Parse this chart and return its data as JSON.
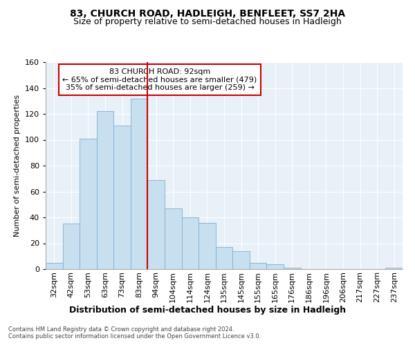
{
  "title": "83, CHURCH ROAD, HADLEIGH, BENFLEET, SS7 2HA",
  "subtitle": "Size of property relative to semi-detached houses in Hadleigh",
  "xlabel": "Distribution of semi-detached houses by size in Hadleigh",
  "ylabel": "Number of semi-detached properties",
  "footnote1": "Contains HM Land Registry data © Crown copyright and database right 2024.",
  "footnote2": "Contains public sector information licensed under the Open Government Licence v3.0.",
  "bar_labels": [
    "32sqm",
    "42sqm",
    "53sqm",
    "63sqm",
    "73sqm",
    "83sqm",
    "94sqm",
    "104sqm",
    "114sqm",
    "124sqm",
    "135sqm",
    "145sqm",
    "155sqm",
    "165sqm",
    "176sqm",
    "186sqm",
    "196sqm",
    "206sqm",
    "217sqm",
    "227sqm",
    "237sqm"
  ],
  "bar_values": [
    5,
    35,
    101,
    122,
    111,
    132,
    69,
    47,
    40,
    36,
    17,
    14,
    5,
    4,
    1,
    0,
    0,
    0,
    0,
    0,
    1
  ],
  "bar_color": "#c8dff0",
  "bar_edgecolor": "#7bafd4",
  "vline_color": "#cc0000",
  "vline_x_index": 6,
  "property_label": "83 CHURCH ROAD: 92sqm",
  "annotation_smaller": "← 65% of semi-detached houses are smaller (479)",
  "annotation_larger": "35% of semi-detached houses are larger (259) →",
  "annotation_box_color": "#ffffff",
  "annotation_box_edgecolor": "#cc0000",
  "ylim": [
    0,
    160
  ],
  "yticks": [
    0,
    20,
    40,
    60,
    80,
    100,
    120,
    140,
    160
  ],
  "background_color": "#e8f0f8",
  "title_fontsize": 10,
  "subtitle_fontsize": 9,
  "xlabel_fontsize": 9,
  "ylabel_fontsize": 8,
  "tick_fontsize": 8,
  "footnote_fontsize": 6,
  "annot_fontsize": 8
}
